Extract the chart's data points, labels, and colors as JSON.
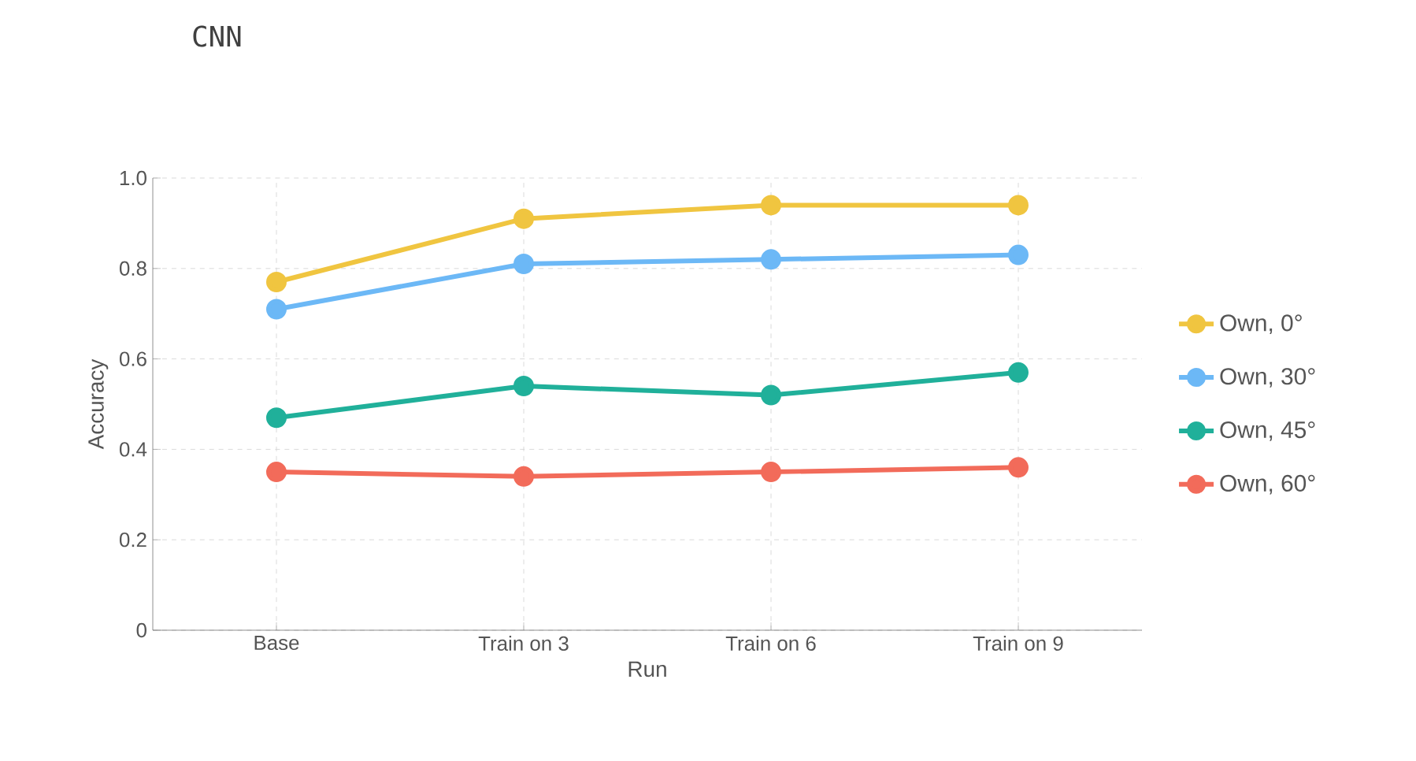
{
  "chart_data": {
    "type": "line",
    "title": "CNN",
    "xlabel": "Run",
    "ylabel": "Accuracy",
    "categories": [
      "Base",
      "Train on 3",
      "Train on 6",
      "Train on 9"
    ],
    "series": [
      {
        "name": "Own, 0°",
        "color": "#f0c540",
        "values": [
          0.77,
          0.91,
          0.94,
          0.94
        ]
      },
      {
        "name": "Own, 30°",
        "color": "#6cb8f6",
        "values": [
          0.71,
          0.81,
          0.82,
          0.83
        ]
      },
      {
        "name": "Own, 45°",
        "color": "#20b09a",
        "values": [
          0.47,
          0.54,
          0.52,
          0.57
        ]
      },
      {
        "name": "Own, 60°",
        "color": "#f26b5a",
        "values": [
          0.35,
          0.34,
          0.35,
          0.36
        ]
      }
    ],
    "ylim": [
      0,
      1
    ],
    "yticks": [
      0,
      {
        "value": 0.2,
        "label": "0.2"
      },
      {
        "value": 0.4,
        "label": "0.4"
      },
      {
        "value": 0.6,
        "label": "0.6"
      },
      {
        "value": 0.8,
        "label": "0.8"
      },
      {
        "value": 1,
        "label": "1.0"
      }
    ],
    "grid": true,
    "legend": "right",
    "marker": "circle",
    "line_style": "solid"
  }
}
